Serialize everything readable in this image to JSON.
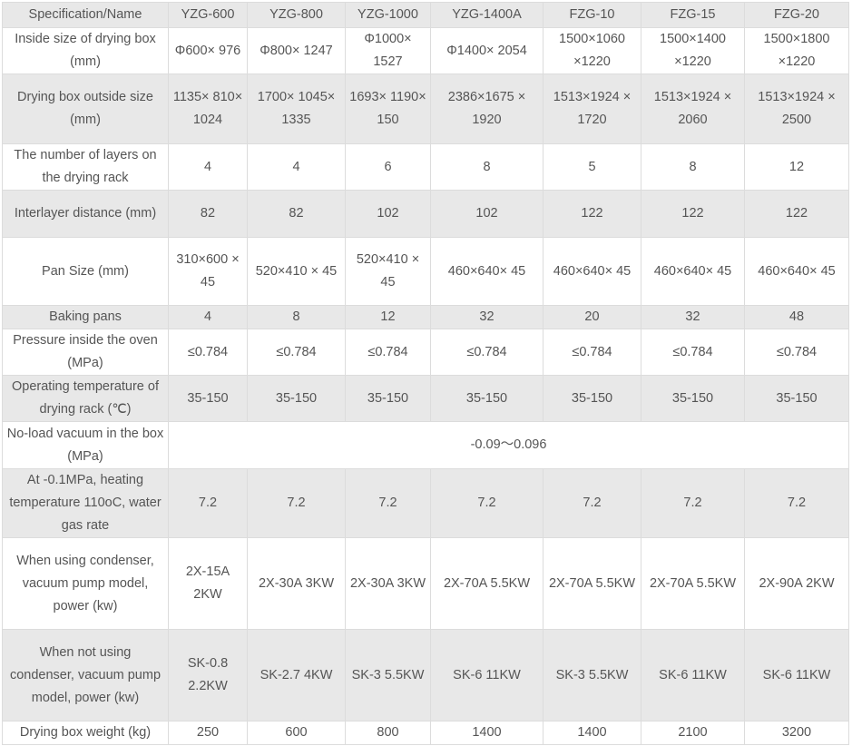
{
  "header": [
    "Specification/Name",
    "YZG-600",
    "YZG-800",
    "YZG-1000",
    "YZG-1400A",
    "FZG-10",
    "FZG-15",
    "FZG-20"
  ],
  "rows": [
    {
      "label": "Inside size of drying box (mm)",
      "values": [
        "Φ600× 976",
        "Φ800× 1247",
        "Φ1000× 1527",
        "Φ1400× 2054",
        "1500×1060 ×1220",
        "1500×1400 ×1220",
        "1500×1800 ×1220"
      ]
    },
    {
      "label": "Drying box outside size (mm)",
      "values": [
        "1135× 810× 1024",
        "1700× 1045× 1335",
        "1693× 1190× 150",
        "2386×1675 × 1920",
        "1513×1924 × 1720",
        "1513×1924 × 2060",
        "1513×1924 × 2500"
      ]
    },
    {
      "label": "The number of layers on the drying rack",
      "values": [
        "4",
        "4",
        "6",
        "8",
        "5",
        "8",
        "12"
      ]
    },
    {
      "label": "Interlayer distance (mm)",
      "values": [
        "82",
        "82",
        "102",
        "102",
        "122",
        "122",
        "122"
      ]
    },
    {
      "label": "Pan Size (mm)",
      "values": [
        "310×600 × 45",
        "520×410 × 45",
        "520×410 × 45",
        "460×640× 45",
        "460×640× 45",
        "460×640× 45",
        "460×640× 45"
      ]
    },
    {
      "label": "Baking pans",
      "values": [
        "4",
        "8",
        "12",
        "32",
        "20",
        "32",
        "48"
      ]
    },
    {
      "label": "Pressure inside the oven (MPa)",
      "values": [
        "≤0.784",
        "≤0.784",
        "≤0.784",
        "≤0.784",
        "≤0.784",
        "≤0.784",
        "≤0.784"
      ]
    },
    {
      "label": "Operating temperature of drying rack (℃)",
      "values": [
        "35-150",
        "35-150",
        "35-150",
        "35-150",
        "35-150",
        "35-150",
        "35-150"
      ]
    },
    {
      "label": "No-load vacuum in the box (MPa)",
      "merged": "-0.09～0.096"
    },
    {
      "label": "At -0.1MPa, heating temperature 110oC, water gas rate",
      "values": [
        "7.2",
        "7.2",
        "7.2",
        "7.2",
        "7.2",
        "7.2",
        "7.2"
      ]
    },
    {
      "label": "When using condenser, vacuum pump model, power (kw)",
      "values": [
        "2X-15A 2KW",
        "2X-30A 3KW",
        "2X-30A 3KW",
        "2X-70A 5.5KW",
        "2X-70A 5.5KW",
        "2X-70A 5.5KW",
        "2X-90A 2KW"
      ]
    },
    {
      "label": "When not using condenser, vacuum pump model, power (kw)",
      "values": [
        "SK-0.8 2.2KW",
        "SK-2.7 4KW",
        "SK-3 5.5KW",
        "SK-6 11KW",
        "SK-3 5.5KW",
        "SK-6 11KW",
        "SK-6 11KW"
      ]
    },
    {
      "label": "Drying box weight (kg)",
      "values": [
        "250",
        "600",
        "800",
        "1400",
        "1400",
        "2100",
        "3200"
      ]
    }
  ]
}
